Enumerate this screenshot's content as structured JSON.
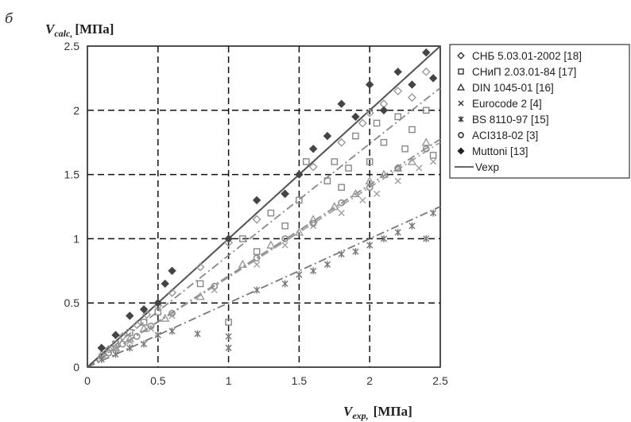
{
  "panel_label": "б",
  "chart_data": {
    "type": "scatter",
    "x_axis_title": {
      "var": "V",
      "sub": "exp,",
      "unit": "[МПа]"
    },
    "y_axis_title": {
      "var": "V",
      "sub": "calc,",
      "unit": "[МПа]"
    },
    "xlim": [
      0,
      2.5
    ],
    "ylim": [
      0,
      2.5
    ],
    "x_ticks": [
      "0",
      "0.5",
      "1",
      "1.5",
      "2",
      "2.5"
    ],
    "y_ticks": [
      "0",
      "0.5",
      "1",
      "1.5",
      "2",
      "2.5"
    ],
    "grid": "dashed",
    "legend_position": "right",
    "series": [
      {
        "name": "СНБ 5.03.01-2002 [18]",
        "marker": "open-diamond",
        "color": "#9a9a9a",
        "trend_slope": 1.0,
        "points": [
          [
            0.15,
            0.14
          ],
          [
            0.25,
            0.24
          ],
          [
            0.35,
            0.33
          ],
          [
            0.42,
            0.41
          ],
          [
            0.5,
            0.48
          ],
          [
            0.6,
            0.58
          ],
          [
            0.8,
            0.78
          ],
          [
            1.0,
            0.97
          ],
          [
            1.2,
            1.15
          ],
          [
            1.4,
            1.35
          ],
          [
            1.6,
            1.56
          ],
          [
            1.8,
            1.75
          ],
          [
            1.95,
            1.9
          ],
          [
            2.0,
            1.98
          ],
          [
            2.1,
            2.05
          ],
          [
            2.2,
            2.15
          ],
          [
            2.3,
            2.1
          ],
          [
            2.4,
            2.3
          ]
        ]
      },
      {
        "name": "СНиП 2.03.01-84 [17]",
        "marker": "open-square",
        "color": "#888888",
        "trend_slope": 0.87,
        "points": [
          [
            0.2,
            0.18
          ],
          [
            0.3,
            0.27
          ],
          [
            0.4,
            0.35
          ],
          [
            0.5,
            0.43
          ],
          [
            0.8,
            0.65
          ],
          [
            1.0,
            0.35
          ],
          [
            1.1,
            1.0
          ],
          [
            1.2,
            0.9
          ],
          [
            1.3,
            1.2
          ],
          [
            1.4,
            1.1
          ],
          [
            1.5,
            1.3
          ],
          [
            1.55,
            1.6
          ],
          [
            1.7,
            1.45
          ],
          [
            1.75,
            1.6
          ],
          [
            1.8,
            1.4
          ],
          [
            1.85,
            1.55
          ],
          [
            1.9,
            1.8
          ],
          [
            2.0,
            1.6
          ],
          [
            2.05,
            1.9
          ],
          [
            2.1,
            1.75
          ],
          [
            2.2,
            1.95
          ],
          [
            2.25,
            1.7
          ],
          [
            2.3,
            1.85
          ],
          [
            2.4,
            2.0
          ],
          [
            2.45,
            1.65
          ]
        ]
      },
      {
        "name": "DIN 1045-01 [16]",
        "marker": "open-triangle",
        "color": "#999999",
        "trend_slope": 0.71,
        "points": [
          [
            0.1,
            0.1
          ],
          [
            0.2,
            0.15
          ],
          [
            0.3,
            0.22
          ],
          [
            0.4,
            0.3
          ],
          [
            0.55,
            0.38
          ],
          [
            0.8,
            0.55
          ],
          [
            1.1,
            0.8
          ],
          [
            1.3,
            0.95
          ],
          [
            1.5,
            1.05
          ],
          [
            1.6,
            1.15
          ],
          [
            1.75,
            1.25
          ],
          [
            1.9,
            1.35
          ],
          [
            2.0,
            1.45
          ],
          [
            2.1,
            1.5
          ],
          [
            2.2,
            1.55
          ],
          [
            2.3,
            1.6
          ],
          [
            2.4,
            1.75
          ]
        ]
      },
      {
        "name": "Eurocode 2 [4]",
        "marker": "x",
        "color": "#a0a0a0",
        "trend_slope": 0.7,
        "points": [
          [
            0.1,
            0.08
          ],
          [
            0.2,
            0.15
          ],
          [
            0.3,
            0.2
          ],
          [
            0.45,
            0.3
          ],
          [
            0.6,
            0.4
          ],
          [
            0.9,
            0.6
          ],
          [
            1.2,
            0.8
          ],
          [
            1.4,
            0.95
          ],
          [
            1.6,
            1.1
          ],
          [
            1.8,
            1.2
          ],
          [
            1.95,
            1.3
          ],
          [
            2.05,
            1.35
          ],
          [
            2.2,
            1.45
          ],
          [
            2.35,
            1.55
          ],
          [
            2.45,
            1.6
          ]
        ]
      },
      {
        "name": "BS 8110-97 [15]",
        "marker": "asterisk",
        "color": "#777777",
        "trend_slope": 0.5,
        "points": [
          [
            0.1,
            0.06
          ],
          [
            0.2,
            0.1
          ],
          [
            0.3,
            0.15
          ],
          [
            0.4,
            0.18
          ],
          [
            0.5,
            0.25
          ],
          [
            0.6,
            0.28
          ],
          [
            0.78,
            0.26
          ],
          [
            1.0,
            0.15
          ],
          [
            1.0,
            0.24
          ],
          [
            1.2,
            0.6
          ],
          [
            1.4,
            0.65
          ],
          [
            1.5,
            0.72
          ],
          [
            1.6,
            0.75
          ],
          [
            1.7,
            0.8
          ],
          [
            1.8,
            0.88
          ],
          [
            1.9,
            0.9
          ],
          [
            2.0,
            0.95
          ],
          [
            2.1,
            1.0
          ],
          [
            2.2,
            1.05
          ],
          [
            2.3,
            1.1
          ],
          [
            2.4,
            1.0
          ],
          [
            2.45,
            1.2
          ]
        ]
      },
      {
        "name": "ACI318-02 [3]",
        "marker": "open-circle",
        "color": "#8e8e8e",
        "trend_slope": 0.71,
        "points": [
          [
            0.15,
            0.11
          ],
          [
            0.25,
            0.18
          ],
          [
            0.35,
            0.24
          ],
          [
            0.45,
            0.32
          ],
          [
            0.6,
            0.42
          ],
          [
            0.9,
            0.63
          ],
          [
            1.2,
            0.85
          ],
          [
            1.4,
            1.0
          ],
          [
            1.6,
            1.12
          ],
          [
            1.8,
            1.28
          ],
          [
            2.0,
            1.4
          ],
          [
            2.2,
            1.55
          ],
          [
            2.4,
            1.7
          ]
        ]
      },
      {
        "name": "Muttoni [13]",
        "marker": "filled-diamond",
        "color": "#444444",
        "trend_slope": 1.0,
        "points": [
          [
            0.1,
            0.15
          ],
          [
            0.2,
            0.25
          ],
          [
            0.3,
            0.4
          ],
          [
            0.4,
            0.45
          ],
          [
            0.5,
            0.5
          ],
          [
            0.55,
            0.65
          ],
          [
            0.6,
            0.75
          ],
          [
            1.0,
            1.0
          ],
          [
            1.2,
            1.3
          ],
          [
            1.4,
            1.35
          ],
          [
            1.5,
            1.5
          ],
          [
            1.6,
            1.7
          ],
          [
            1.7,
            1.8
          ],
          [
            1.8,
            2.05
          ],
          [
            1.9,
            1.95
          ],
          [
            2.0,
            2.2
          ],
          [
            2.1,
            2.0
          ],
          [
            2.2,
            2.3
          ],
          [
            2.3,
            2.2
          ],
          [
            2.4,
            2.45
          ],
          [
            2.45,
            2.25
          ]
        ]
      },
      {
        "name": "Vexp",
        "marker": "line",
        "color": "#555555",
        "trend_slope": 1.0,
        "points": [
          [
            0,
            0
          ],
          [
            2.5,
            2.5
          ]
        ]
      }
    ]
  }
}
